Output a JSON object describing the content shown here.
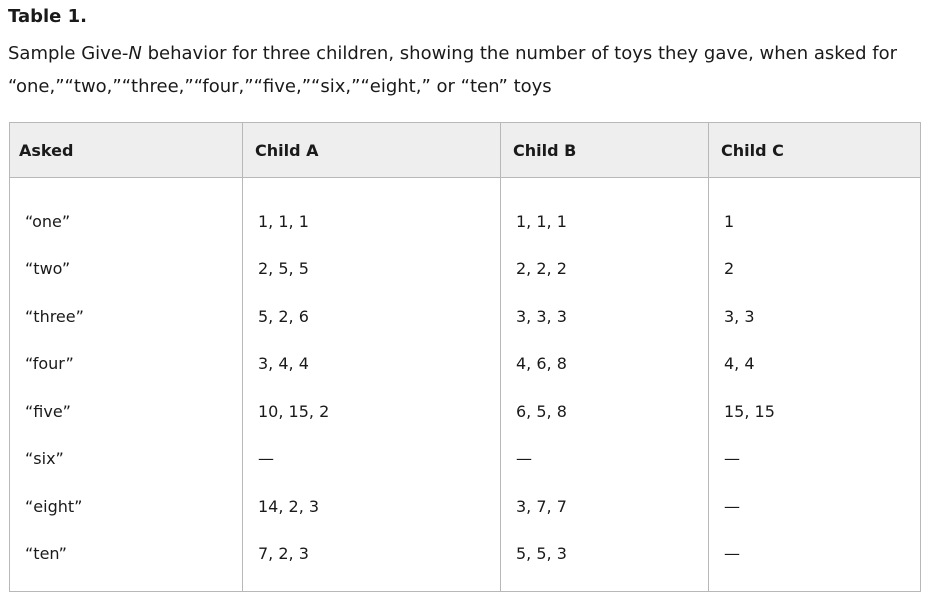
{
  "table": {
    "label": "Table 1.",
    "caption_before": "Sample Give-",
    "caption_italic": "N",
    "caption_after": " behavior for three children, showing the number of toys they gave, when asked for “one,”“two,”“three,”“four,”“five,”“six,”“eight,” or “ten” toys",
    "headers": [
      "Asked",
      "Child A",
      "Child B",
      "Child C"
    ],
    "rows": [
      [
        "“one”",
        "1, 1, 1",
        "1, 1, 1",
        "1"
      ],
      [
        "“two”",
        "2, 5, 5",
        "2, 2, 2",
        "2"
      ],
      [
        "“three”",
        "5, 2, 6",
        "3, 3, 3",
        "3, 3"
      ],
      [
        "“four”",
        "3, 4, 4",
        "4, 6, 8",
        "4, 4"
      ],
      [
        "“five”",
        "10, 15, 2",
        "6, 5, 8",
        "15, 15"
      ],
      [
        "“six”",
        "—",
        "—",
        "—"
      ],
      [
        "“eight”",
        "14, 2, 3",
        "3, 7, 7",
        "—"
      ],
      [
        "“ten”",
        "7, 2, 3",
        "5, 5, 3",
        "—"
      ]
    ]
  }
}
